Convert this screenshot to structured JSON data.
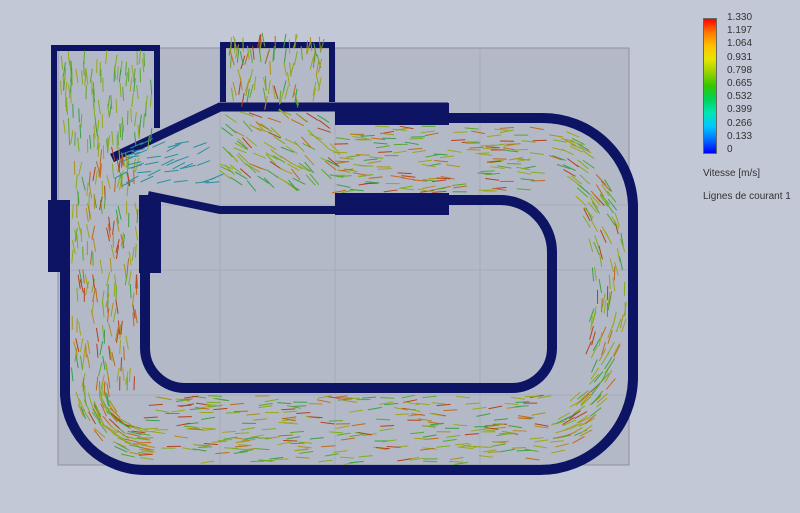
{
  "legend": {
    "title": "Vitesse [m/s]",
    "subtitle": "Lignes de courant 1",
    "ticks": [
      "1.330",
      "1.197",
      "1.064",
      "0.931",
      "0.798",
      "0.665",
      "0.532",
      "0.399",
      "0.266",
      "0.133",
      "0"
    ],
    "colors": [
      "#0000ff",
      "#0070ff",
      "#00c8ff",
      "#00e6b4",
      "#00d25a",
      "#32c800",
      "#96d200",
      "#e6e600",
      "#ffc000",
      "#ff7800",
      "#ff0000"
    ]
  },
  "colors": {
    "background": "#c3c8d7",
    "outline": "#0e1464",
    "region_fill": "#b4b9c8",
    "frame": "#8c90a0"
  }
}
